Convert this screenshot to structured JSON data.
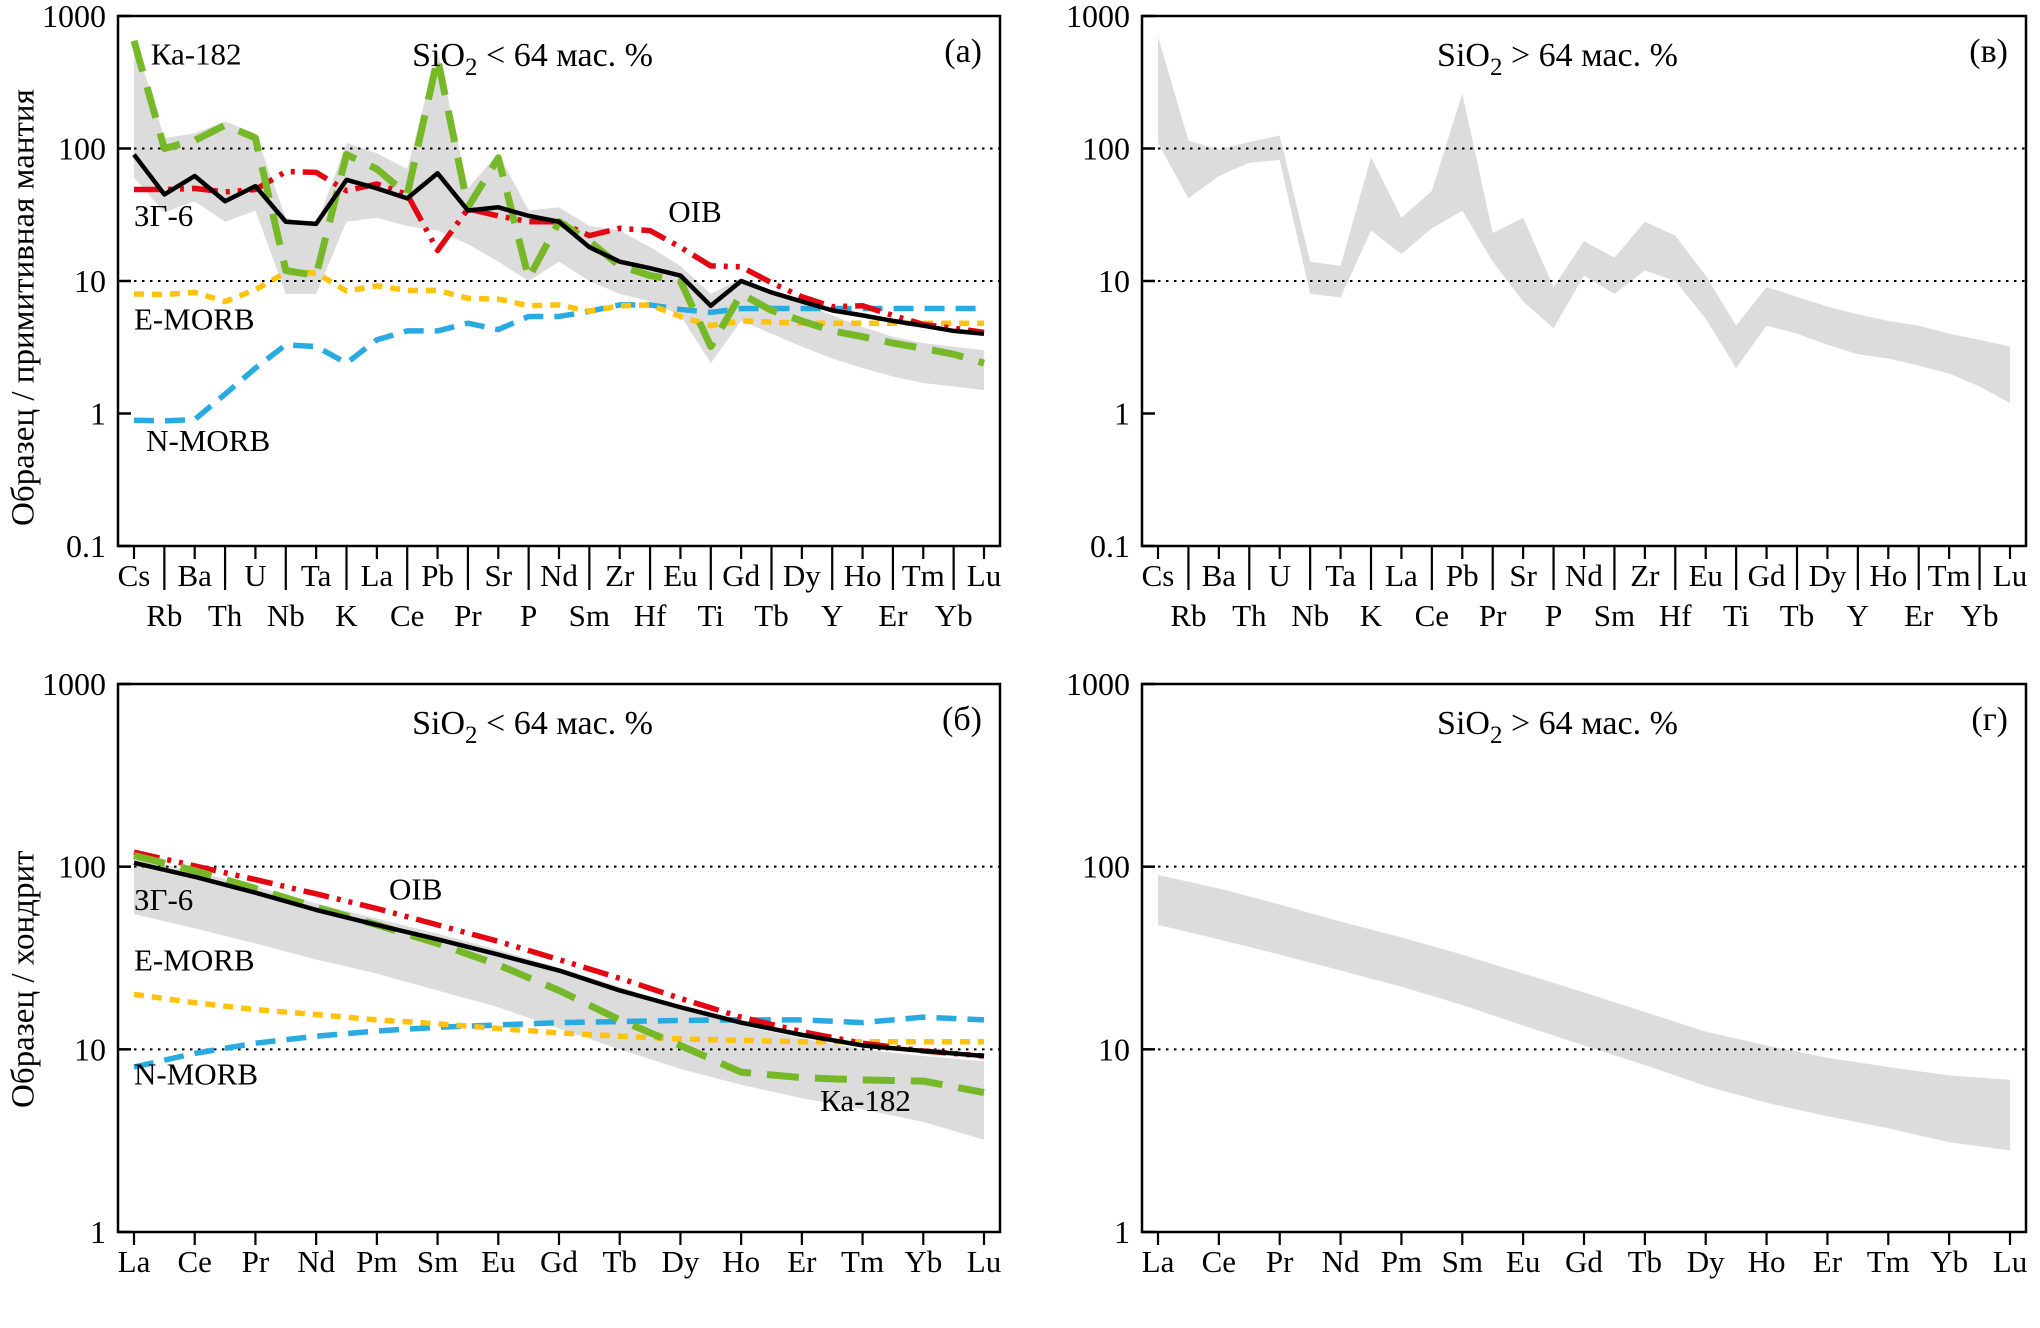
{
  "figure": {
    "ylabel_top": "Образец / примитивная мантия",
    "ylabel_bottom": "Образец / хондрит"
  },
  "chart_data": [
    {
      "id": "a",
      "type": "line",
      "panel_label": "(а)",
      "title": {
        "base": "SiO",
        "sub": "2",
        "rest": " < 64 мас. %"
      },
      "x_categories": [
        "Cs",
        "Rb",
        "Ba",
        "Th",
        "U",
        "Nb",
        "Ta",
        "K",
        "La",
        "Ce",
        "Pb",
        "Pr",
        "Sr",
        "P",
        "Nd",
        "Sm",
        "Zr",
        "Hf",
        "Eu",
        "Ti",
        "Gd",
        "Tb",
        "Dy",
        "Y",
        "Ho",
        "Er",
        "Tm",
        "Yb",
        "Lu"
      ],
      "ylim": [
        0.1,
        1000
      ],
      "yticks": [
        "1000",
        "100",
        "10",
        "1",
        "0.1"
      ],
      "gridlines": [
        100,
        10
      ],
      "grid_style": "dotted",
      "band": {
        "color": "#dcdcdc",
        "upper": [
          680,
          120,
          130,
          160,
          130,
          30,
          26,
          110,
          92,
          70,
          540,
          50,
          92,
          34,
          36,
          26,
          24,
          18,
          13,
          8,
          10.5,
          8.5,
          6.8,
          5.5,
          4.5,
          3.8,
          3.4,
          3.2,
          3
        ],
        "lower": [
          60,
          33,
          40,
          28,
          34,
          8,
          8,
          28,
          30,
          26,
          24,
          19,
          14,
          10,
          14,
          10,
          8,
          7,
          5.5,
          2.4,
          5,
          4,
          3.2,
          2.6,
          2.2,
          1.9,
          1.7,
          1.6,
          1.5
        ]
      },
      "series": [
        {
          "name": "N-MORB",
          "color": "#29abe2",
          "style": "dash",
          "width": 5.5,
          "values": [
            0.89,
            0.88,
            0.9,
            1.4,
            2.2,
            3.3,
            3.2,
            2.4,
            3.6,
            4.2,
            4.2,
            4.8,
            4.3,
            5.4,
            5.4,
            5.9,
            6.6,
            6.6,
            6.1,
            5.8,
            6.2,
            6.2,
            6.2,
            6.2,
            6.2,
            6.2,
            6.2,
            6.2,
            6.2
          ]
        },
        {
          "name": "E-MORB",
          "color": "#ffc20e",
          "style": "short-dash",
          "width": 5.5,
          "values": [
            8,
            7.9,
            8.2,
            7,
            8.6,
            11.6,
            11.5,
            8.4,
            9.2,
            8.5,
            8.5,
            7.4,
            7.3,
            6.5,
            6.6,
            5.9,
            6.5,
            6.6,
            5.4,
            4.6,
            5,
            4.9,
            4.8,
            4.8,
            4.8,
            4.8,
            4.8,
            4.8,
            4.8
          ]
        },
        {
          "name": "OIB",
          "color": "#e30613",
          "style": "dash-dot-dot",
          "width": 5.5,
          "values": [
            49,
            49,
            50,
            47,
            49,
            67,
            66,
            48,
            54,
            45,
            17,
            35,
            31,
            28,
            28,
            22,
            25,
            24,
            18,
            13,
            12.8,
            9.7,
            7.6,
            6.4,
            6.5,
            5.5,
            4.7,
            4.4,
            4.1
          ]
        },
        {
          "name": "Ка-182",
          "color": "#77b829",
          "style": "long-dash",
          "width": 7,
          "values": [
            650,
            100,
            115,
            150,
            120,
            12,
            11,
            90,
            70,
            45,
            480,
            36,
            85,
            10.5,
            28,
            20,
            13,
            11,
            10,
            3.2,
            8,
            6,
            5,
            4.2,
            3.8,
            3.4,
            3.1,
            2.8,
            2.4
          ]
        },
        {
          "name": "ЗГ-6",
          "color": "#000000",
          "style": "solid",
          "width": 4.5,
          "values": [
            90,
            45,
            62,
            40,
            52,
            28,
            27,
            58,
            50,
            42,
            65,
            34,
            36,
            31,
            28,
            18,
            14,
            12.5,
            11,
            6.5,
            10,
            8.2,
            7,
            6,
            5.5,
            5,
            4.6,
            4.2,
            4
          ]
        }
      ],
      "annotations": [
        {
          "text": "Ка-182",
          "x": 0.55,
          "y": 430
        },
        {
          "text": "ЗГ-6",
          "x": 0,
          "y": 26
        },
        {
          "text": "OIB",
          "x": 17.6,
          "y": 28
        },
        {
          "text": "E-MORB",
          "x": 0,
          "y": 4.3
        },
        {
          "text": "N-MORB",
          "x": 0.4,
          "y": 0.52
        }
      ]
    },
    {
      "id": "v",
      "type": "line",
      "panel_label": "(в)",
      "title": {
        "base": "SiO",
        "sub": "2",
        "rest": " > 64 мас. %"
      },
      "x_categories": [
        "Cs",
        "Rb",
        "Ba",
        "Th",
        "U",
        "Nb",
        "Ta",
        "K",
        "La",
        "Ce",
        "Pb",
        "Pr",
        "Sr",
        "P",
        "Nd",
        "Sm",
        "Zr",
        "Hf",
        "Eu",
        "Ti",
        "Gd",
        "Tb",
        "Dy",
        "Y",
        "Ho",
        "Er",
        "Tm",
        "Yb",
        "Lu"
      ],
      "ylim": [
        0.1,
        1000
      ],
      "yticks": [
        "1000",
        "100",
        "10",
        "1",
        "0.1"
      ],
      "gridlines": [
        100,
        10
      ],
      "grid_style": "dotted",
      "band": {
        "color": "#dcdcdc",
        "upper": [
          700,
          115,
          98,
          112,
          125,
          14,
          13,
          86,
          30,
          48,
          260,
          23,
          30,
          9,
          20,
          15,
          28,
          22,
          11,
          4.6,
          9,
          7.6,
          6.4,
          5.6,
          5,
          4.6,
          4,
          3.6,
          3.2
        ],
        "lower": [
          110,
          42,
          62,
          78,
          82,
          8,
          7.5,
          24,
          16,
          25,
          34,
          14,
          7,
          4.4,
          11,
          8,
          12,
          10,
          5.2,
          2.2,
          4.6,
          4,
          3.3,
          2.8,
          2.6,
          2.3,
          2,
          1.6,
          1.2
        ]
      },
      "series": [],
      "annotations": []
    },
    {
      "id": "b",
      "type": "line",
      "panel_label": "(б)",
      "title": {
        "base": "SiO",
        "sub": "2",
        "rest": " < 64 мас. %"
      },
      "x_categories": [
        "La",
        "Ce",
        "Pr",
        "Nd",
        "Pm",
        "Sm",
        "Eu",
        "Gd",
        "Tb",
        "Dy",
        "Ho",
        "Er",
        "Tm",
        "Yb",
        "Lu"
      ],
      "ylim": [
        1,
        1000
      ],
      "yticks": [
        "1000",
        "100",
        "10",
        "1"
      ],
      "gridlines": [
        100,
        10
      ],
      "grid_style": "dotted",
      "band": {
        "color": "#dcdcdc",
        "upper": [
          112,
          94,
          78,
          63,
          52,
          43,
          35,
          28,
          22,
          17,
          13.5,
          11.5,
          10,
          9.2,
          8.6
        ],
        "lower": [
          55,
          46,
          38,
          31,
          26,
          21,
          17,
          13,
          10,
          7.8,
          6.4,
          5.4,
          4.7,
          4,
          3.2
        ]
      },
      "series": [
        {
          "name": "N-MORB",
          "color": "#29abe2",
          "style": "dash",
          "width": 5.5,
          "values": [
            8,
            9.5,
            10.8,
            11.8,
            12.6,
            13.2,
            13.6,
            14,
            14.2,
            14.4,
            14.5,
            14.5,
            14,
            15,
            14.5
          ]
        },
        {
          "name": "E-MORB",
          "color": "#ffc20e",
          "style": "short-dash",
          "width": 5.5,
          "values": [
            20,
            18,
            16.5,
            15.5,
            14.5,
            13.8,
            13,
            12.3,
            11.8,
            11.4,
            11.2,
            11,
            11,
            11,
            11
          ]
        },
        {
          "name": "OIB",
          "color": "#e30613",
          "style": "dash-dot-dot",
          "width": 5.5,
          "values": [
            120,
            101,
            85,
            71,
            59,
            48,
            39,
            31,
            24.5,
            19,
            15,
            12.5,
            10.8,
            9.8,
            9.2
          ]
        },
        {
          "name": "Ка-182",
          "color": "#77b829",
          "style": "long-dash",
          "width": 7,
          "values": [
            115,
            95,
            76,
            60,
            48,
            38,
            29,
            21,
            14.5,
            10.5,
            7.5,
            7,
            6.8,
            6.7,
            5.8
          ]
        },
        {
          "name": "ЗГ-6",
          "color": "#000000",
          "style": "solid",
          "width": 4.5,
          "values": [
            105,
            88,
            72,
            58,
            48,
            40,
            33,
            27,
            21,
            17,
            14,
            12,
            10.5,
            9.8,
            9.2
          ]
        }
      ],
      "annotations": [
        {
          "text": "ЗГ-6",
          "x": 0,
          "y": 58
        },
        {
          "text": "OIB",
          "x": 4.2,
          "y": 66
        },
        {
          "text": "E-MORB",
          "x": 0,
          "y": 27
        },
        {
          "text": "N-MORB",
          "x": 0,
          "y": 6.4
        },
        {
          "text": "Ка-182",
          "x": 11.3,
          "y": 4.6
        }
      ]
    },
    {
      "id": "g",
      "type": "line",
      "panel_label": "(г)",
      "title": {
        "base": "SiO",
        "sub": "2",
        "rest": " > 64 мас. %"
      },
      "x_categories": [
        "La",
        "Ce",
        "Pr",
        "Nd",
        "Pm",
        "Sm",
        "Eu",
        "Gd",
        "Tb",
        "Dy",
        "Ho",
        "Er",
        "Tm",
        "Yb",
        "Lu"
      ],
      "ylim": [
        1,
        1000
      ],
      "yticks": [
        "1000",
        "100",
        "10",
        "1"
      ],
      "gridlines": [
        100,
        10
      ],
      "grid_style": "dotted",
      "band": {
        "color": "#dcdcdc",
        "upper": [
          90,
          76,
          62,
          50,
          41,
          33,
          26,
          20.5,
          16,
          12.5,
          10.5,
          9,
          8,
          7.2,
          6.8
        ],
        "lower": [
          48,
          40,
          33,
          27,
          22,
          17.5,
          13.5,
          10.5,
          8.2,
          6.3,
          5.1,
          4.3,
          3.7,
          3.1,
          2.8
        ]
      },
      "series": [],
      "annotations": []
    }
  ]
}
